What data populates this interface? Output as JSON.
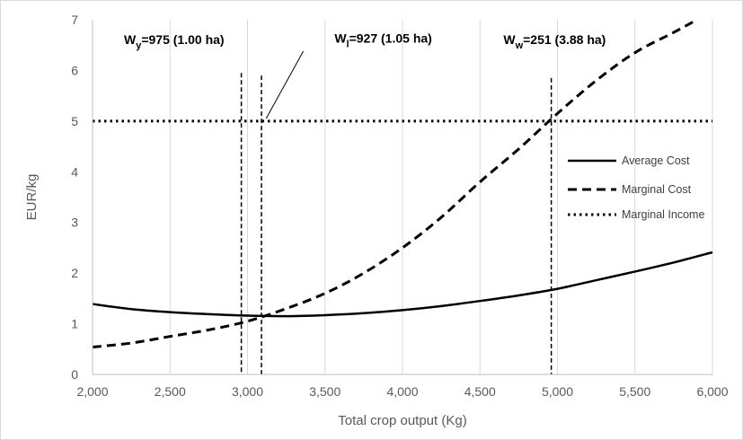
{
  "chart_data": {
    "type": "line",
    "title": "",
    "xlabel": "Total crop output (Kg)",
    "ylabel": "EUR/kg",
    "xlim": [
      2000,
      6000
    ],
    "ylim": [
      0,
      7
    ],
    "x_ticks": [
      "2,000",
      "2,500",
      "3,000",
      "3,500",
      "4,000",
      "4,500",
      "5,000",
      "5,500",
      "6,000"
    ],
    "y_ticks": [
      "0",
      "1",
      "2",
      "3",
      "4",
      "5",
      "6",
      "7"
    ],
    "grid": "vertical",
    "legend_position": "right",
    "series": [
      {
        "name": "Average Cost",
        "style": "solid",
        "x": [
          2000,
          2250,
          2500,
          2750,
          3000,
          3250,
          3500,
          3750,
          4000,
          4250,
          4500,
          4750,
          5000,
          5250,
          5500,
          5750,
          6000
        ],
        "y": [
          1.39,
          1.29,
          1.23,
          1.19,
          1.16,
          1.15,
          1.17,
          1.21,
          1.27,
          1.35,
          1.45,
          1.56,
          1.69,
          1.86,
          2.03,
          2.21,
          2.41
        ]
      },
      {
        "name": "Marginal Cost",
        "style": "dashed",
        "x": [
          2000,
          2250,
          2500,
          2750,
          3000,
          3250,
          3500,
          3750,
          4000,
          4250,
          4500,
          4750,
          5000,
          5250,
          5500,
          5750,
          5900
        ],
        "y": [
          0.54,
          0.62,
          0.75,
          0.88,
          1.05,
          1.3,
          1.6,
          2.0,
          2.5,
          3.1,
          3.8,
          4.45,
          5.15,
          5.8,
          6.35,
          6.75,
          7.0
        ]
      },
      {
        "name": "Marginal Income",
        "style": "dotted",
        "x": [
          2000,
          6000
        ],
        "y": [
          5,
          5
        ]
      }
    ],
    "vlines": [
      {
        "x": 2960,
        "y_top": 5.95
      },
      {
        "x": 3090,
        "y_top": 5.9
      },
      {
        "x": 4960,
        "y_top": 5.85
      }
    ],
    "annotations": [
      {
        "label_main": "W",
        "label_sub": "y",
        "label_rest": "=975 (1.00 ha)",
        "x": 2000,
        "y": 6.52
      },
      {
        "label_main": "W",
        "label_sub": "l",
        "label_rest": "=927 (1.05 ha)",
        "x": 3370,
        "y": 6.55
      },
      {
        "label_main": "W",
        "label_sub": "w",
        "label_rest": "=251 (3.88 ha)",
        "x": 4460,
        "y": 6.52
      }
    ],
    "leader_line": {
      "x1": 3120,
      "y1": 5.05,
      "x2": 3360,
      "y2": 6.38
    },
    "colors": {
      "lines": "#000000",
      "grid": "#d9d9d9",
      "axis": "#bfbfbf",
      "tick_text": "#595959"
    }
  }
}
